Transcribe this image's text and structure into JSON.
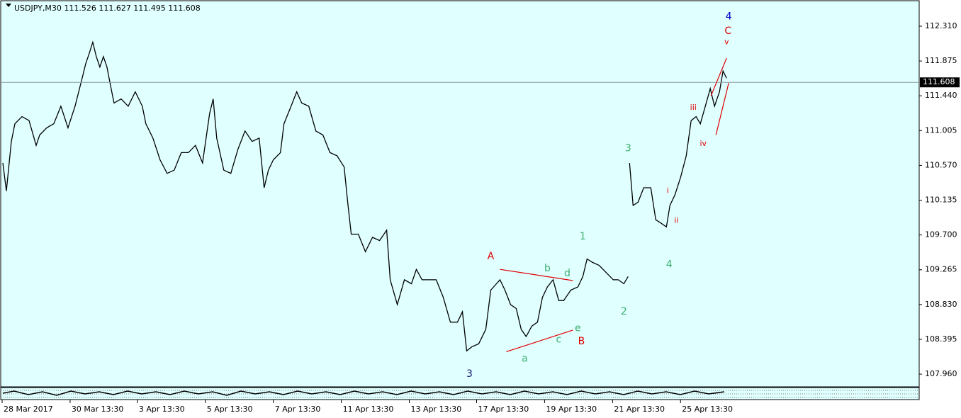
{
  "chart_data": {
    "type": "line",
    "title": "USDJPY,M30  111.526 111.627 111.495 111.608",
    "color": "#000000",
    "background": "#e0ffff",
    "xlim": [
      0,
      1297
    ],
    "ylim": [
      107.81,
      112.62
    ],
    "x": [
      3,
      8,
      15,
      20,
      30,
      40,
      50,
      55,
      65,
      75,
      85,
      95,
      105,
      115,
      120,
      125,
      130,
      135,
      140,
      145,
      150,
      155,
      160,
      170,
      180,
      190,
      200,
      205,
      215,
      225,
      235,
      245,
      255,
      265,
      275,
      285,
      295,
      300,
      305,
      315,
      325,
      335,
      345,
      355,
      365,
      372,
      378,
      385,
      395,
      400,
      410,
      418,
      425,
      435,
      445,
      455,
      465,
      475,
      485,
      490,
      495,
      505,
      515,
      525,
      535,
      545,
      550,
      560,
      570,
      580,
      587,
      595,
      605,
      615,
      625,
      635,
      645,
      652,
      658,
      665,
      675,
      685,
      692,
      700,
      705,
      712,
      720,
      728,
      735,
      742,
      750,
      758,
      765,
      772,
      780,
      788,
      795,
      805,
      815,
      822,
      828,
      835,
      845,
      855,
      865,
      872,
      880,
      886,
      887,
      888,
      893,
      900,
      908,
      918,
      925,
      932,
      940,
      945,
      952,
      960,
      968,
      975,
      982,
      988,
      995,
      1002,
      1008,
      1015,
      1020,
      1025
    ],
    "values": [
      110.6,
      110.25,
      110.87,
      111.09,
      111.18,
      111.13,
      110.82,
      110.95,
      111.04,
      111.09,
      111.31,
      111.04,
      111.31,
      111.66,
      111.84,
      111.97,
      112.11,
      111.93,
      111.8,
      111.93,
      111.8,
      111.57,
      111.35,
      111.4,
      111.31,
      111.49,
      111.31,
      111.09,
      110.91,
      110.64,
      110.47,
      110.51,
      110.73,
      110.73,
      110.82,
      110.6,
      111.22,
      111.4,
      110.91,
      110.51,
      110.47,
      110.77,
      111.0,
      110.87,
      110.91,
      110.29,
      110.51,
      110.64,
      110.73,
      111.09,
      111.31,
      111.49,
      111.35,
      111.31,
      111.0,
      110.95,
      110.73,
      110.69,
      110.55,
      110.11,
      109.71,
      109.71,
      109.49,
      109.67,
      109.63,
      109.76,
      109.14,
      108.83,
      109.14,
      109.09,
      109.27,
      109.14,
      109.14,
      109.14,
      108.92,
      108.61,
      108.61,
      108.74,
      108.25,
      108.3,
      108.34,
      108.52,
      109.01,
      109.09,
      109.14,
      109.01,
      108.83,
      108.78,
      108.52,
      108.43,
      108.56,
      108.61,
      108.92,
      109.05,
      109.14,
      108.88,
      108.88,
      109.01,
      109.05,
      109.18,
      109.4,
      109.36,
      109.32,
      109.23,
      109.14,
      109.14,
      109.09,
      109.18,
      null,
      110.6,
      110.07,
      110.11,
      110.29,
      110.29,
      109.89,
      109.85,
      109.8,
      110.07,
      110.2,
      110.42,
      110.69,
      111.13,
      111.18,
      111.09,
      111.31,
      111.53,
      111.31,
      111.49,
      111.75,
      111.66
    ],
    "yticks": [
      {
        "value": 107.96,
        "label": "107.960"
      },
      {
        "value": 108.395,
        "label": "108.395"
      },
      {
        "value": 108.83,
        "label": "108.830"
      },
      {
        "value": 109.265,
        "label": "109.265"
      },
      {
        "value": 109.7,
        "label": "109.700"
      },
      {
        "value": 110.135,
        "label": "110.135"
      },
      {
        "value": 110.57,
        "label": "110.570"
      },
      {
        "value": 111.005,
        "label": "111.005"
      },
      {
        "value": 111.44,
        "label": "111.440"
      },
      {
        "value": 111.875,
        "label": "111.875"
      },
      {
        "value": 112.31,
        "label": "112.310"
      }
    ],
    "xticks": [
      {
        "value": 2,
        "label": "28 Mar 2017"
      },
      {
        "value": 98,
        "label": "30 Mar 13:30"
      },
      {
        "value": 193,
        "label": "3 Apr 13:30"
      },
      {
        "value": 289,
        "label": "5 Apr 13:30"
      },
      {
        "value": 385,
        "label": "7 Apr 13:30"
      },
      {
        "value": 481,
        "label": "11 Apr 13:30"
      },
      {
        "value": 577,
        "label": "13 Apr 13:30"
      },
      {
        "value": 672,
        "label": "17 Apr 13:30"
      },
      {
        "value": 768,
        "label": "19 Apr 13:30"
      },
      {
        "value": 864,
        "label": "21 Apr 13:30"
      },
      {
        "value": 960,
        "label": "25 Apr 13:30"
      }
    ],
    "current_price": {
      "value": 111.608,
      "label": "111.608"
    },
    "annotations": [
      {
        "text": "4",
        "color": "#0000cc",
        "x": 1028,
        "y": 112.43
      },
      {
        "text": "C",
        "color": "#e00000",
        "x": 1027,
        "y": 112.25
      },
      {
        "text": "v",
        "color": "#e00000",
        "x": 1025,
        "y": 112.11
      },
      {
        "text": "3",
        "color": "#3cae6e",
        "x": 886,
        "y": 110.78
      },
      {
        "text": "iii",
        "color": "#e00000",
        "x": 978,
        "y": 111.29
      },
      {
        "text": "iv",
        "color": "#e00000",
        "x": 992,
        "y": 110.84
      },
      {
        "text": "i",
        "color": "#e00000",
        "x": 942,
        "y": 110.25
      },
      {
        "text": "ii",
        "color": "#e00000",
        "x": 954,
        "y": 109.88
      },
      {
        "text": "1",
        "color": "#3cae6e",
        "x": 822,
        "y": 109.68
      },
      {
        "text": "4",
        "color": "#3cae6e",
        "x": 944,
        "y": 109.33
      },
      {
        "text": "2",
        "color": "#3cae6e",
        "x": 880,
        "y": 108.74
      },
      {
        "text": "A",
        "color": "#e00000",
        "x": 692,
        "y": 109.43
      },
      {
        "text": "b",
        "color": "#3cae6e",
        "x": 772,
        "y": 109.28
      },
      {
        "text": "d",
        "color": "#3cae6e",
        "x": 800,
        "y": 109.22
      },
      {
        "text": "e",
        "color": "#3cae6e",
        "x": 815,
        "y": 108.53
      },
      {
        "text": "c",
        "color": "#3cae6e",
        "x": 788,
        "y": 108.39
      },
      {
        "text": "B",
        "color": "#e00000",
        "x": 820,
        "y": 108.37
      },
      {
        "text": "a",
        "color": "#3cae6e",
        "x": 740,
        "y": 108.15
      },
      {
        "text": "3",
        "color": "#1a1a6e",
        "x": 662,
        "y": 107.96
      }
    ],
    "trendlines": [
      {
        "color": "#e00000",
        "x1": 705,
        "y1": 109.27,
        "x2": 808,
        "y2": 109.13
      },
      {
        "color": "#e00000",
        "x1": 714,
        "y1": 108.24,
        "x2": 808,
        "y2": 108.51
      },
      {
        "color": "#e00000",
        "x1": 1003,
        "y1": 111.44,
        "x2": 1025,
        "y2": 111.91
      },
      {
        "color": "#e00000",
        "x1": 1010,
        "y1": 110.95,
        "x2": 1028,
        "y2": 111.6
      }
    ]
  }
}
